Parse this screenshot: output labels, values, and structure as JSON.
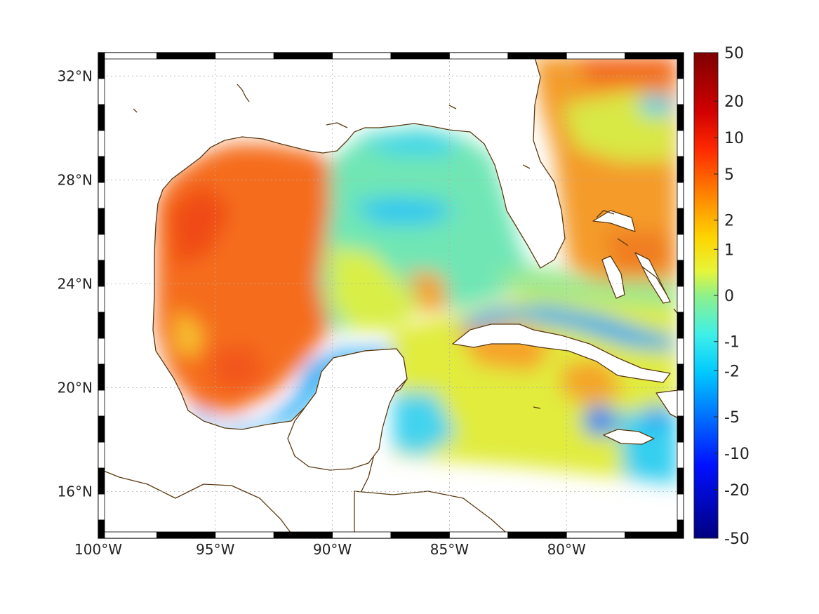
{
  "map": {
    "lon_range": [
      -100,
      -75
    ],
    "lat_range": [
      14.2,
      32.9
    ],
    "lon_ticks": [
      {
        "value": -100,
        "label": "100°W"
      },
      {
        "value": -95,
        "label": "95°W"
      },
      {
        "value": -90,
        "label": "90°W"
      },
      {
        "value": -85,
        "label": "85°W"
      },
      {
        "value": -80,
        "label": "80°W"
      }
    ],
    "lat_ticks": [
      {
        "value": 16,
        "label": "16°N"
      },
      {
        "value": 20,
        "label": "20°N"
      },
      {
        "value": 24,
        "label": "24°N"
      },
      {
        "value": 28,
        "label": "28°N"
      },
      {
        "value": 32,
        "label": "32°N"
      }
    ],
    "grid": true,
    "coastline_color": "#5a3a12",
    "frame_style": "alternating black/white border"
  },
  "colorbar": {
    "colormap": "jet",
    "placement": "right",
    "tick_labels": [
      "50",
      "20",
      "10",
      "5",
      "2",
      "1",
      "0",
      "-1",
      "-2",
      "-5",
      "-10",
      "-20",
      "-50"
    ]
  },
  "field": {
    "description_regions": [
      {
        "region": "western Gulf",
        "level": "high (~5)",
        "color": "#f86a1a"
      },
      {
        "region": "eastern Gulf",
        "level": "near 0 to -2",
        "color": "#7fe9a8"
      },
      {
        "region": "Bay of Campeche",
        "level": "about -2",
        "color": "#2fb6f2"
      },
      {
        "region": "Caribbean",
        "level": "about 1",
        "color": "#e2ef3a"
      },
      {
        "region": "Atlantic north",
        "level": "about 2-5",
        "color": "#f79b24"
      }
    ]
  }
}
